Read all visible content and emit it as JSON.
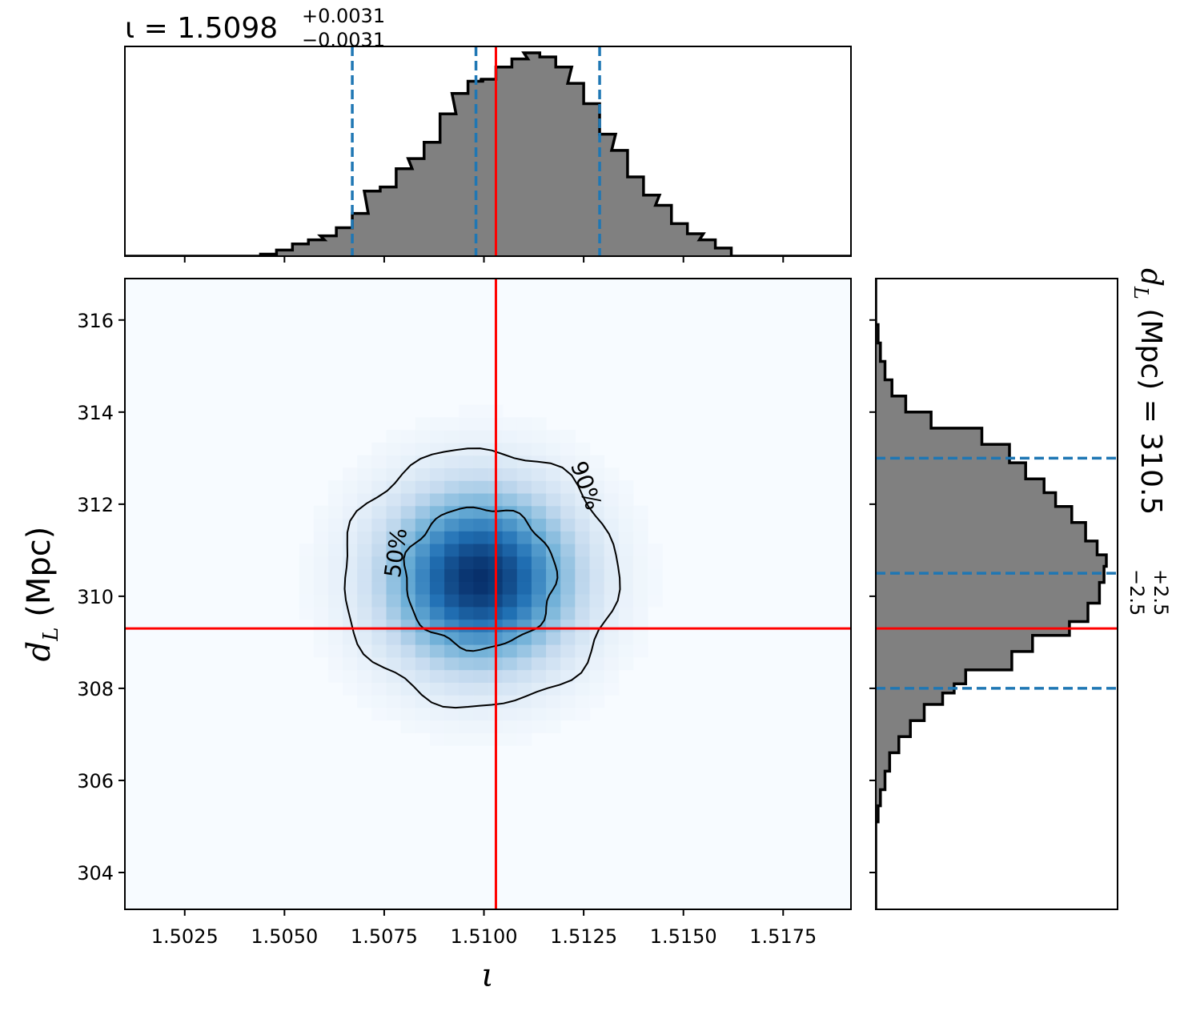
{
  "chart_data": [
    {
      "type": "area",
      "panel": "marginal-iota",
      "title": {
        "base": "ι = 1.5098",
        "sup": "+0.0031",
        "sub": "−0.0031"
      },
      "xlim": [
        1.501,
        1.5192
      ],
      "x": [
        1.5046,
        1.505,
        1.5054,
        1.5058,
        1.5061,
        1.5065,
        1.5069,
        1.5072,
        1.5076,
        1.508,
        1.5083,
        1.5087,
        1.5091,
        1.5094,
        1.5098,
        1.5101,
        1.5105,
        1.5109,
        1.5112,
        1.5116,
        1.512,
        1.5123,
        1.5127,
        1.5131,
        1.5134,
        1.5138,
        1.5142,
        1.5145,
        1.5149,
        1.5153,
        1.5156,
        1.516
      ],
      "values": [
        0.01,
        0.03,
        0.06,
        0.08,
        0.1,
        0.14,
        0.21,
        0.32,
        0.34,
        0.43,
        0.48,
        0.56,
        0.7,
        0.8,
        0.86,
        0.87,
        0.93,
        0.97,
        1.0,
        0.98,
        0.93,
        0.85,
        0.75,
        0.6,
        0.52,
        0.39,
        0.3,
        0.25,
        0.16,
        0.11,
        0.08,
        0.04
      ],
      "quantile_lines": [
        1.5067,
        1.5098,
        1.5129
      ],
      "truth": 1.5103,
      "x_ticks": [
        "1.5025",
        "1.5050",
        "1.5075",
        "1.5100",
        "1.5125",
        "1.5150",
        "1.5175"
      ]
    },
    {
      "type": "heatmap",
      "panel": "joint",
      "xlabel": "ι",
      "ylabel": "d_L (Mpc)",
      "xlim": [
        1.501,
        1.5192
      ],
      "ylim": [
        303.2,
        316.9
      ],
      "center": [
        1.5099,
        310.4
      ],
      "sigma": [
        0.0016,
        1.3
      ],
      "truth": {
        "x": 1.5103,
        "y": 309.3
      },
      "contours": [
        "50%",
        "90%"
      ],
      "x_ticks": [
        "1.5025",
        "1.5050",
        "1.5075",
        "1.5100",
        "1.5125",
        "1.5150",
        "1.5175"
      ],
      "y_ticks": [
        "304",
        "306",
        "308",
        "310",
        "312",
        "314",
        "316"
      ],
      "colors": {
        "map": [
          "#f7fbff",
          "#c6dbef",
          "#6baed6",
          "#2171b5",
          "#08306b"
        ],
        "truth": "#ff0000",
        "contour": "#000000"
      }
    },
    {
      "type": "area",
      "panel": "marginal-dl",
      "title": {
        "base": "d_L (Mpc) = 310.5",
        "sup": "+2.5",
        "sub": "−2.5"
      },
      "ylim": [
        303.2,
        316.9
      ],
      "y": [
        305.3,
        305.6,
        306.0,
        306.4,
        306.8,
        307.1,
        307.5,
        307.8,
        308.0,
        308.2,
        308.6,
        309.0,
        309.3,
        309.6,
        310.1,
        310.5,
        310.8,
        311.0,
        311.4,
        311.8,
        312.1,
        312.4,
        312.7,
        313.1,
        313.5,
        313.8,
        314.2,
        314.5,
        314.9,
        315.3,
        315.7
      ],
      "values": [
        0.01,
        0.02,
        0.04,
        0.06,
        0.1,
        0.15,
        0.21,
        0.29,
        0.34,
        0.39,
        0.59,
        0.68,
        0.84,
        0.92,
        0.97,
        0.99,
        1.0,
        0.96,
        0.91,
        0.85,
        0.78,
        0.73,
        0.65,
        0.58,
        0.46,
        0.24,
        0.13,
        0.07,
        0.04,
        0.02,
        0.01
      ],
      "quantile_lines": [
        308.0,
        310.5,
        313.0
      ],
      "truth": 309.3,
      "colors": {
        "fill": "#808080",
        "edge": "#000000",
        "quantile": "#1f77b4",
        "truth": "#ff0000"
      }
    }
  ]
}
